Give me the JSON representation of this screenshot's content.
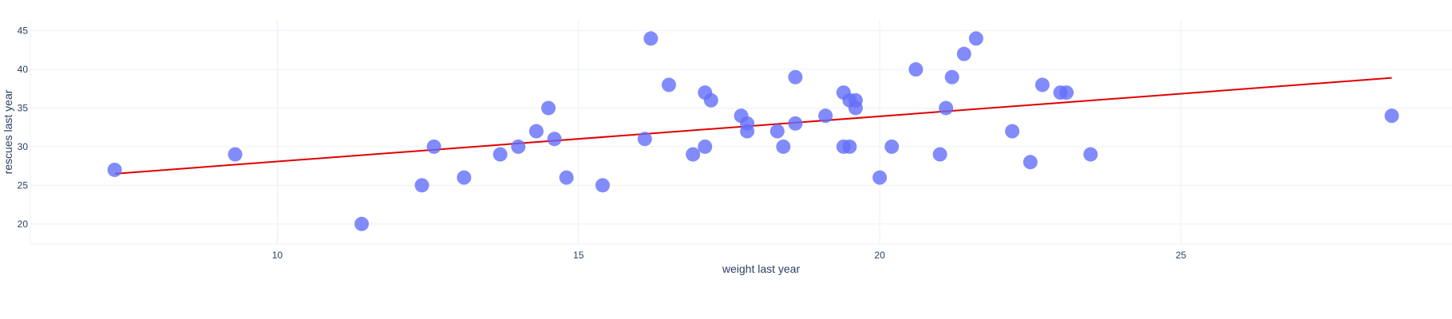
{
  "chart_data": {
    "type": "scatter",
    "title": "",
    "xlabel": "weight last year",
    "ylabel": "rescues last year",
    "xlim": [
      5.9,
      29.5
    ],
    "ylim": [
      17.4,
      46.4
    ],
    "xticks": [
      10,
      15,
      20,
      25
    ],
    "yticks": [
      20,
      25,
      30,
      35,
      40,
      45
    ],
    "grid": true,
    "colors": {
      "points": "#636efa",
      "trendline": "#e00000",
      "text": "#2a3f5f",
      "grid": "#ebf0f8"
    },
    "series": [
      {
        "values": [
          [
            7.3,
            27
          ],
          [
            9.3,
            29
          ],
          [
            11.4,
            20
          ],
          [
            12.4,
            25
          ],
          [
            12.6,
            30
          ],
          [
            13.1,
            26
          ],
          [
            13.7,
            29
          ],
          [
            14.0,
            30
          ],
          [
            14.3,
            32
          ],
          [
            14.5,
            35
          ],
          [
            14.6,
            31
          ],
          [
            14.8,
            26
          ],
          [
            15.4,
            25
          ],
          [
            16.1,
            31
          ],
          [
            16.2,
            44
          ],
          [
            16.5,
            38
          ],
          [
            16.9,
            29
          ],
          [
            17.1,
            37
          ],
          [
            17.1,
            30
          ],
          [
            17.2,
            36
          ],
          [
            17.7,
            34
          ],
          [
            17.8,
            33
          ],
          [
            17.8,
            32
          ],
          [
            18.3,
            32
          ],
          [
            18.4,
            30
          ],
          [
            18.6,
            39
          ],
          [
            18.6,
            33
          ],
          [
            19.1,
            34
          ],
          [
            19.4,
            37
          ],
          [
            19.4,
            30
          ],
          [
            19.5,
            36
          ],
          [
            19.5,
            30
          ],
          [
            19.6,
            36
          ],
          [
            19.6,
            35
          ],
          [
            20.0,
            26
          ],
          [
            20.2,
            30
          ],
          [
            20.6,
            40
          ],
          [
            21.0,
            29
          ],
          [
            21.1,
            35
          ],
          [
            21.2,
            39
          ],
          [
            21.4,
            42
          ],
          [
            21.6,
            44
          ],
          [
            22.2,
            32
          ],
          [
            22.5,
            28
          ],
          [
            22.7,
            38
          ],
          [
            23.0,
            37
          ],
          [
            23.1,
            37
          ],
          [
            23.5,
            29
          ],
          [
            28.5,
            34
          ]
        ]
      }
    ],
    "trendline": {
      "x": [
        7.3,
        28.5
      ],
      "y": [
        26.5,
        38.9
      ]
    }
  }
}
